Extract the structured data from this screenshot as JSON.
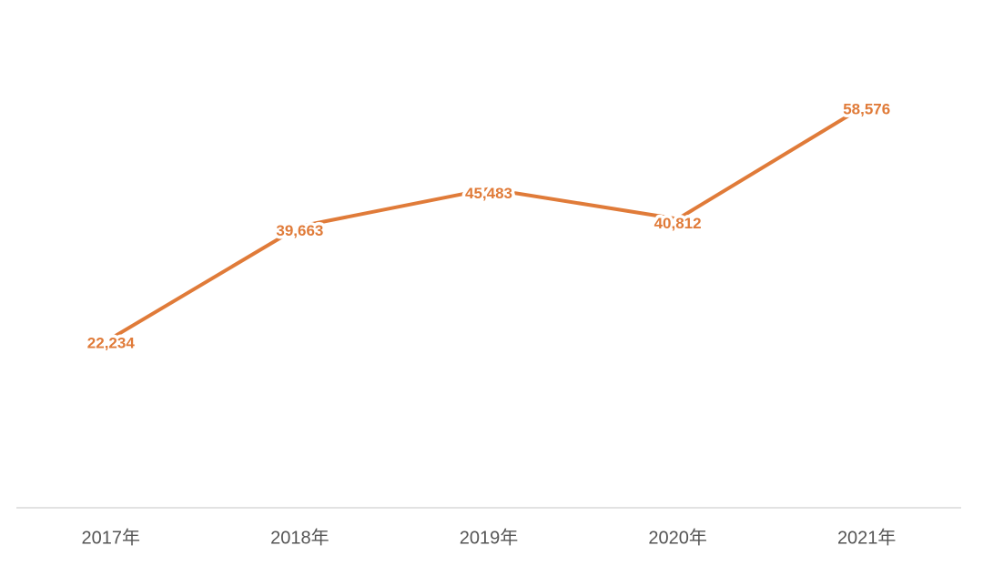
{
  "chart_data": {
    "type": "line",
    "categories": [
      "2017年",
      "2018年",
      "2019年",
      "2020年",
      "2021年"
    ],
    "values": [
      22234,
      39663,
      45483,
      40812,
      58576
    ],
    "value_labels": [
      "22,234",
      "39,663",
      "45,483",
      "40,812",
      "58,576"
    ],
    "color": "#e07b39"
  }
}
